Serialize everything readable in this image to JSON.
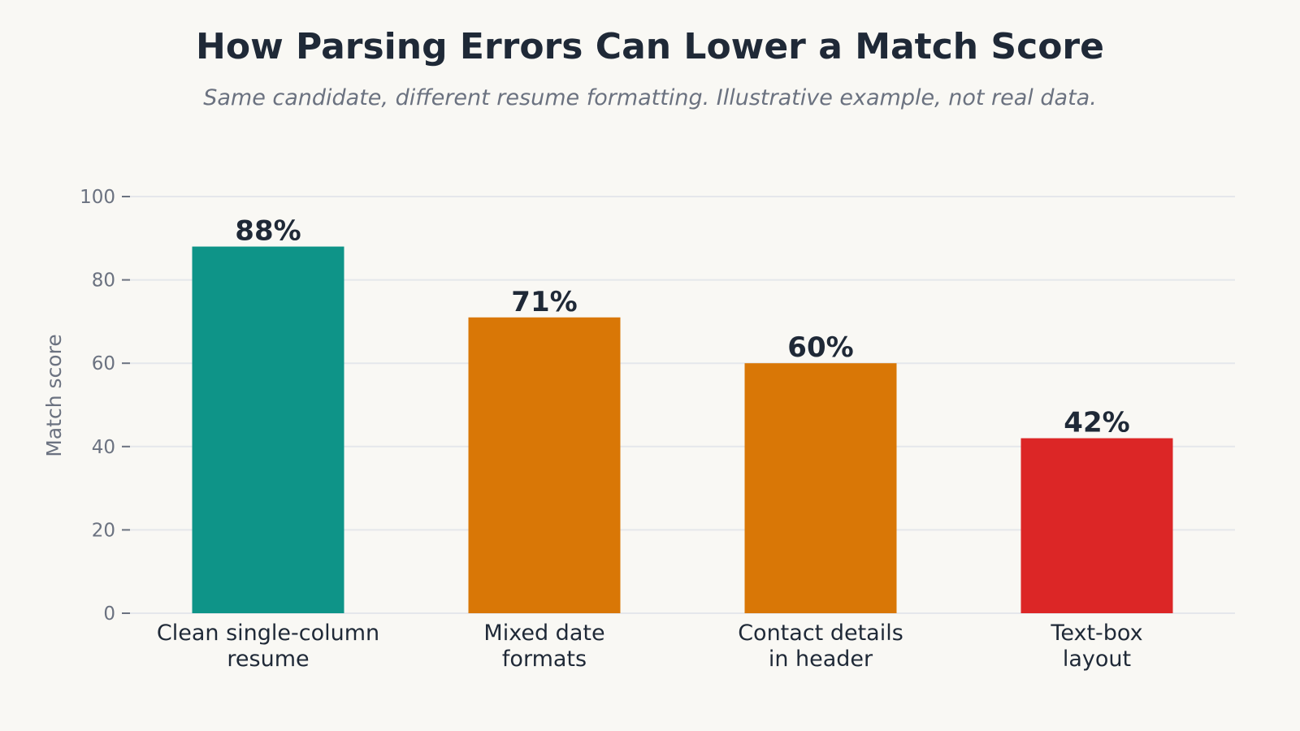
{
  "chart_data": {
    "type": "bar",
    "title": "How Parsing Errors Can Lower a Match Score",
    "subtitle": "Same candidate, different resume formatting. Illustrative example, not real data.",
    "xlabel": "",
    "ylabel": "Match score",
    "ylim": [
      0,
      100
    ],
    "yticks": [
      0,
      20,
      40,
      60,
      80,
      100
    ],
    "grid": true,
    "categories": [
      [
        "Clean single-column",
        "resume"
      ],
      [
        "Mixed date",
        "formats"
      ],
      [
        "Contact details",
        "in header"
      ],
      [
        "Text-box",
        "layout"
      ]
    ],
    "values": [
      88,
      71,
      60,
      42
    ],
    "value_labels": [
      "88%",
      "71%",
      "60%",
      "42%"
    ],
    "colors": [
      "#0e9488",
      "#d97706",
      "#d97706",
      "#dc2626"
    ]
  }
}
